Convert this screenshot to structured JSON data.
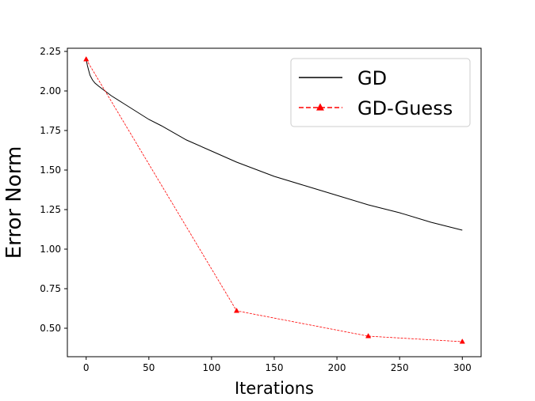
{
  "chart_data": {
    "type": "line",
    "xlabel": "Iterations",
    "ylabel": "Error Norm",
    "xlim": [
      -15,
      315
    ],
    "ylim": [
      0.32,
      2.27
    ],
    "xticks": [
      0,
      50,
      100,
      150,
      200,
      250,
      300
    ],
    "xtick_labels": [
      "0",
      "50",
      "100",
      "150",
      "200",
      "250",
      "300"
    ],
    "yticks": [
      0.5,
      0.75,
      1.0,
      1.25,
      1.5,
      1.75,
      2.0,
      2.25
    ],
    "ytick_labels": [
      "0.50",
      "0.75",
      "1.00",
      "1.25",
      "1.50",
      "1.75",
      "2.00",
      "2.25"
    ],
    "grid": false,
    "legend_position": "top-right",
    "series": [
      {
        "name": "GD",
        "color": "#000000",
        "style": "solid",
        "marker": "none",
        "x": [
          0,
          1,
          2,
          3,
          5,
          7,
          10,
          15,
          20,
          30,
          40,
          50,
          60,
          80,
          100,
          120,
          150,
          175,
          200,
          225,
          250,
          275,
          300
        ],
        "y": [
          2.2,
          2.16,
          2.13,
          2.1,
          2.07,
          2.05,
          2.03,
          2.0,
          1.97,
          1.92,
          1.87,
          1.82,
          1.78,
          1.69,
          1.62,
          1.55,
          1.46,
          1.4,
          1.34,
          1.28,
          1.23,
          1.17,
          1.12
        ]
      },
      {
        "name": "GD-Guess",
        "color": "#ff0000",
        "style": "dashed",
        "marker": "triangle",
        "x": [
          0,
          120,
          225,
          300
        ],
        "y": [
          2.2,
          0.61,
          0.45,
          0.415
        ]
      }
    ]
  }
}
